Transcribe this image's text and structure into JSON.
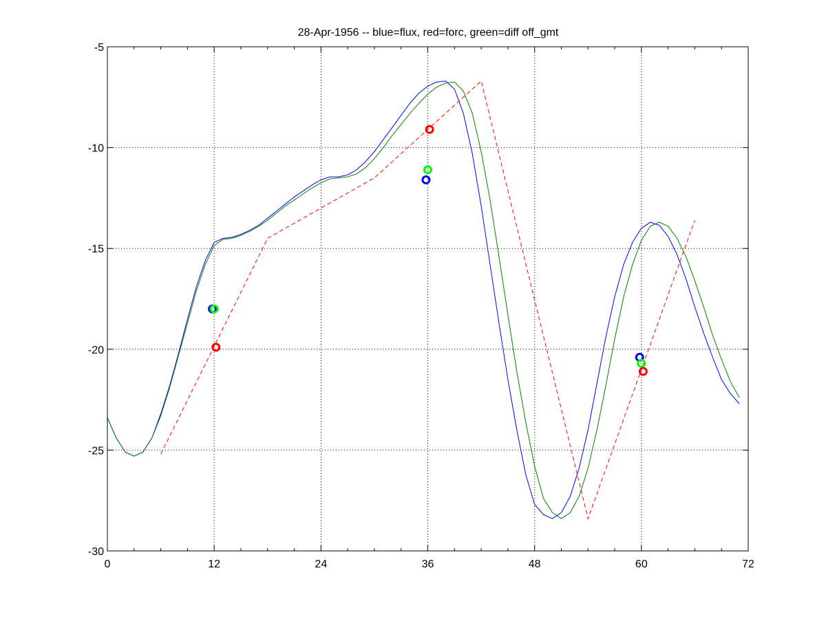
{
  "chart_data": {
    "type": "line",
    "title": "28-Apr-1956 -- blue=flux, red=forc, green=diff off_gmt",
    "xlabel": "",
    "ylabel": "",
    "xlim": [
      0,
      72
    ],
    "ylim": [
      -30,
      -5
    ],
    "x_ticks": [
      0,
      12,
      24,
      36,
      48,
      60,
      72
    ],
    "y_ticks": [
      -5,
      -10,
      -15,
      -20,
      -25,
      -30
    ],
    "grid": "dotted",
    "series": [
      {
        "color": "#0000ff",
        "style": "solid",
        "points": [
          [
            0,
            -23.4
          ],
          [
            1,
            -24.4
          ],
          [
            2,
            -25.1
          ],
          [
            3,
            -25.3
          ],
          [
            4,
            -25.1
          ],
          [
            5,
            -24.4
          ],
          [
            6,
            -23.2
          ],
          [
            7,
            -21.8
          ],
          [
            8,
            -20.2
          ],
          [
            9,
            -18.5
          ],
          [
            10,
            -16.9
          ],
          [
            11,
            -15.6
          ],
          [
            12,
            -14.7
          ],
          [
            13,
            -14.5
          ],
          [
            14,
            -14.45
          ],
          [
            15,
            -14.3
          ],
          [
            16,
            -14.1
          ],
          [
            17,
            -13.85
          ],
          [
            18,
            -13.5
          ],
          [
            19,
            -13.15
          ],
          [
            20,
            -12.8
          ],
          [
            21,
            -12.45
          ],
          [
            22,
            -12.15
          ],
          [
            23,
            -11.85
          ],
          [
            24,
            -11.6
          ],
          [
            25,
            -11.45
          ],
          [
            26,
            -11.45
          ],
          [
            27,
            -11.35
          ],
          [
            28,
            -11.1
          ],
          [
            29,
            -10.7
          ],
          [
            30,
            -10.2
          ],
          [
            31,
            -9.6
          ],
          [
            32,
            -9.0
          ],
          [
            33,
            -8.4
          ],
          [
            34,
            -7.8
          ],
          [
            35,
            -7.3
          ],
          [
            36,
            -6.95
          ],
          [
            37,
            -6.75
          ],
          [
            38,
            -6.7
          ],
          [
            39,
            -7.1
          ],
          [
            40,
            -8.3
          ],
          [
            41,
            -10.3
          ],
          [
            42,
            -12.9
          ],
          [
            43,
            -15.8
          ],
          [
            44,
            -18.7
          ],
          [
            45,
            -21.5
          ],
          [
            46,
            -24.0
          ],
          [
            47,
            -26.2
          ],
          [
            48,
            -27.7
          ],
          [
            49,
            -28.2
          ],
          [
            50,
            -28.4
          ],
          [
            51,
            -28.1
          ],
          [
            52,
            -27.3
          ],
          [
            53,
            -25.9
          ],
          [
            54,
            -24.0
          ],
          [
            55,
            -21.7
          ],
          [
            56,
            -19.4
          ],
          [
            57,
            -17.4
          ],
          [
            58,
            -15.8
          ],
          [
            59,
            -14.7
          ],
          [
            60,
            -14.0
          ],
          [
            61,
            -13.7
          ],
          [
            62,
            -13.85
          ],
          [
            63,
            -14.4
          ],
          [
            64,
            -15.3
          ],
          [
            65,
            -16.5
          ],
          [
            66,
            -17.9
          ],
          [
            67,
            -19.2
          ],
          [
            68,
            -20.4
          ],
          [
            69,
            -21.5
          ],
          [
            70,
            -22.2
          ],
          [
            71,
            -22.7
          ]
        ]
      },
      {
        "color": "#008000",
        "style": "solid",
        "points": [
          [
            0,
            -23.4
          ],
          [
            1,
            -24.4
          ],
          [
            2,
            -25.1
          ],
          [
            3,
            -25.3
          ],
          [
            4,
            -25.1
          ],
          [
            5,
            -24.4
          ],
          [
            6,
            -23.3
          ],
          [
            7,
            -21.9
          ],
          [
            8,
            -20.3
          ],
          [
            9,
            -18.7
          ],
          [
            10,
            -17.1
          ],
          [
            11,
            -15.8
          ],
          [
            12,
            -14.85
          ],
          [
            13,
            -14.55
          ],
          [
            14,
            -14.5
          ],
          [
            15,
            -14.35
          ],
          [
            16,
            -14.15
          ],
          [
            17,
            -13.9
          ],
          [
            18,
            -13.6
          ],
          [
            19,
            -13.25
          ],
          [
            20,
            -12.9
          ],
          [
            21,
            -12.6
          ],
          [
            22,
            -12.3
          ],
          [
            23,
            -12.0
          ],
          [
            24,
            -11.75
          ],
          [
            25,
            -11.55
          ],
          [
            26,
            -11.5
          ],
          [
            27,
            -11.45
          ],
          [
            28,
            -11.3
          ],
          [
            29,
            -11.0
          ],
          [
            30,
            -10.55
          ],
          [
            31,
            -10.0
          ],
          [
            32,
            -9.4
          ],
          [
            33,
            -8.85
          ],
          [
            34,
            -8.3
          ],
          [
            35,
            -7.8
          ],
          [
            36,
            -7.35
          ],
          [
            37,
            -7.0
          ],
          [
            38,
            -6.8
          ],
          [
            39,
            -6.75
          ],
          [
            40,
            -7.2
          ],
          [
            41,
            -8.3
          ],
          [
            42,
            -10.2
          ],
          [
            43,
            -12.6
          ],
          [
            44,
            -15.4
          ],
          [
            45,
            -18.3
          ],
          [
            46,
            -21.1
          ],
          [
            47,
            -23.6
          ],
          [
            48,
            -25.8
          ],
          [
            49,
            -27.4
          ],
          [
            50,
            -28.1
          ],
          [
            51,
            -28.4
          ],
          [
            52,
            -28.1
          ],
          [
            53,
            -27.3
          ],
          [
            54,
            -25.9
          ],
          [
            55,
            -24.0
          ],
          [
            56,
            -21.8
          ],
          [
            57,
            -19.5
          ],
          [
            58,
            -17.4
          ],
          [
            59,
            -15.8
          ],
          [
            60,
            -14.6
          ],
          [
            61,
            -13.9
          ],
          [
            62,
            -13.7
          ],
          [
            63,
            -13.9
          ],
          [
            64,
            -14.5
          ],
          [
            65,
            -15.4
          ],
          [
            66,
            -16.6
          ],
          [
            67,
            -17.9
          ],
          [
            68,
            -19.3
          ],
          [
            69,
            -20.5
          ],
          [
            70,
            -21.6
          ],
          [
            71,
            -22.4
          ]
        ]
      },
      {
        "color": "#ff0000",
        "style": "dashed",
        "points": [
          [
            6,
            -25.2
          ],
          [
            18,
            -14.5
          ],
          [
            30,
            -11.5
          ],
          [
            42,
            -6.7
          ],
          [
            54,
            -28.4
          ],
          [
            66,
            -13.6
          ]
        ]
      }
    ],
    "markers": [
      {
        "color": "#0000ff",
        "x": 11.8,
        "y": -18.0
      },
      {
        "color": "#00ff00",
        "x": 12.0,
        "y": -18.0
      },
      {
        "color": "#ff0000",
        "x": 12.2,
        "y": -19.9
      },
      {
        "color": "#0000ff",
        "x": 35.8,
        "y": -11.6
      },
      {
        "color": "#00ff00",
        "x": 36.0,
        "y": -11.1
      },
      {
        "color": "#ff0000",
        "x": 36.2,
        "y": -9.1
      },
      {
        "color": "#0000ff",
        "x": 59.8,
        "y": -20.4
      },
      {
        "color": "#00ff00",
        "x": 60.0,
        "y": -20.7
      },
      {
        "color": "#ff0000",
        "x": 60.2,
        "y": -21.1
      }
    ]
  }
}
